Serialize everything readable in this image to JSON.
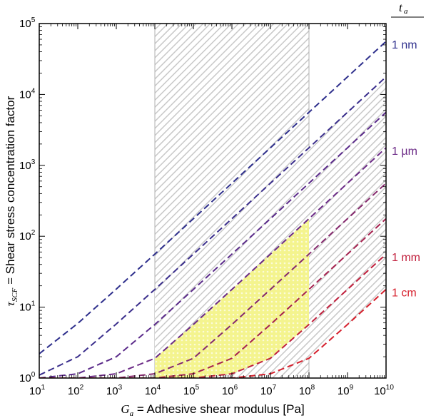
{
  "chart_data": {
    "type": "line",
    "x_scale": "log",
    "y_scale": "log",
    "xlim": [
      10,
      10000000000
    ],
    "ylim": [
      1,
      100000
    ],
    "xlabel": {
      "symbol": "G",
      "subscript": "a",
      "text": " = Adhesive shear modulus [Pa]"
    },
    "ylabel": {
      "symbol": "τ",
      "subscript": "SCF",
      "text": " = Shear stress concentration factor"
    },
    "x_ticks": [
      {
        "base": "10",
        "exp": "1"
      },
      {
        "base": "10",
        "exp": "2"
      },
      {
        "base": "10",
        "exp": "3"
      },
      {
        "base": "10",
        "exp": "4"
      },
      {
        "base": "10",
        "exp": "5"
      },
      {
        "base": "10",
        "exp": "6"
      },
      {
        "base": "10",
        "exp": "7"
      },
      {
        "base": "10",
        "exp": "8"
      },
      {
        "base": "10",
        "exp": "9"
      },
      {
        "base": "10",
        "exp": "10"
      }
    ],
    "y_ticks": [
      {
        "base": "10",
        "exp": "0"
      },
      {
        "base": "10",
        "exp": "1"
      },
      {
        "base": "10",
        "exp": "2"
      },
      {
        "base": "10",
        "exp": "3"
      },
      {
        "base": "10",
        "exp": "4"
      },
      {
        "base": "10",
        "exp": "5"
      }
    ],
    "legend_title": {
      "symbol": "t",
      "subscript": "a"
    },
    "series": [
      {
        "name": "1 nm",
        "color": "#2e2f8c",
        "x": [
          10,
          100,
          1000,
          10000,
          100000,
          1000000,
          10000000,
          100000000,
          1000000000,
          10000000000
        ],
        "y": [
          2.2,
          5.9,
          18.0,
          56.0,
          177,
          560,
          1770,
          5600,
          17700,
          56000
        ]
      },
      {
        "color": "#3a2e8c",
        "x": [
          10,
          100,
          1000,
          10000,
          100000,
          1000000,
          10000000,
          100000000,
          1000000000,
          10000000000
        ],
        "y": [
          1.1,
          2.0,
          5.8,
          17.8,
          56,
          177,
          560,
          1770,
          5600,
          17700
        ]
      },
      {
        "color": "#5a2a8a",
        "x": [
          10,
          100,
          1000,
          10000,
          100000,
          1000000,
          10000000,
          100000000,
          1000000000,
          10000000000
        ],
        "y": [
          1.0,
          1.15,
          2.0,
          5.7,
          17.8,
          56,
          177,
          560,
          1770,
          5600
        ]
      },
      {
        "name": "1 µm",
        "color": "#6b2a86",
        "x": [
          10,
          100,
          1000,
          10000,
          100000,
          1000000,
          10000000,
          100000000,
          1000000000,
          10000000000
        ],
        "y": [
          1.0,
          1.0,
          1.15,
          1.9,
          5.7,
          17.8,
          56,
          177,
          560,
          1770
        ]
      },
      {
        "color": "#85286d",
        "x": [
          10,
          100,
          1000,
          10000,
          100000,
          1000000,
          10000000,
          100000000,
          1000000000,
          10000000000
        ],
        "y": [
          1.0,
          1.0,
          1.0,
          1.15,
          1.9,
          5.7,
          17.8,
          56,
          177,
          560
        ]
      },
      {
        "color": "#a6214f",
        "x": [
          10,
          100,
          1000,
          10000,
          100000,
          1000000,
          10000000,
          100000000,
          1000000000,
          10000000000
        ],
        "y": [
          1.0,
          1.0,
          1.0,
          1.0,
          1.15,
          1.9,
          5.7,
          17.8,
          56,
          177
        ]
      },
      {
        "name": "1 mm",
        "color": "#c1203d",
        "x": [
          10,
          100,
          1000,
          10000,
          100000,
          1000000,
          10000000,
          100000000,
          1000000000,
          10000000000
        ],
        "y": [
          1.0,
          1.0,
          1.0,
          1.0,
          1.0,
          1.15,
          1.9,
          5.7,
          17.8,
          56
        ]
      },
      {
        "name": "1 cm",
        "color": "#d61f2c",
        "x": [
          10,
          100,
          1000,
          10000,
          100000,
          1000000,
          10000000,
          100000000,
          1000000000,
          10000000000
        ],
        "y": [
          1.0,
          1.0,
          1.0,
          1.0,
          1.0,
          1.0,
          1.15,
          1.9,
          5.7,
          17.8
        ]
      }
    ],
    "regions": [
      {
        "kind": "hatched",
        "color": "#c8c8c8",
        "x": [
          10000,
          100000000
        ],
        "y": [
          1,
          100000
        ]
      },
      {
        "kind": "hatched-band",
        "color": "#c8c8c8",
        "x": [
          10000,
          10000000000
        ],
        "between_series": [
          1,
          7
        ]
      },
      {
        "kind": "highlight",
        "color": "#f2f28a",
        "x": [
          10000,
          100000000
        ],
        "between_series": [
          3,
          6
        ]
      }
    ]
  }
}
